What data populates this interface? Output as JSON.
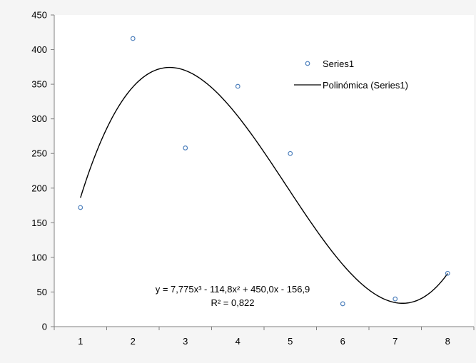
{
  "chart_data": {
    "type": "scatter",
    "x": [
      1,
      2,
      3,
      4,
      5,
      6,
      7,
      8
    ],
    "series": [
      {
        "name": "Series1",
        "marker": "circle-open",
        "color": "#4f81bd",
        "values": [
          172,
          416,
          258,
          347,
          250,
          33,
          40,
          77
        ]
      }
    ],
    "trendline": {
      "name": "Polinómica (Series1)",
      "type": "polynomial",
      "order": 3,
      "coefficients": [
        7.775,
        -114.8,
        450.0,
        -156.9
      ],
      "color": "#000000",
      "equation_label": "y = 7,775x³ - 114,8x² + 450,0x - 156,9",
      "r2_label": "R² = 0,822"
    },
    "xlim": [
      0.5,
      8.5
    ],
    "ylim": [
      0,
      450
    ],
    "x_ticks": [
      1,
      2,
      3,
      4,
      5,
      6,
      7,
      8
    ],
    "y_ticks": [
      0,
      50,
      100,
      150,
      200,
      250,
      300,
      350,
      400,
      450
    ],
    "title": "",
    "xlabel": "",
    "ylabel": "",
    "grid": false,
    "legend": {
      "position": "top-right"
    }
  },
  "colors": {
    "background": "#f5f5f5",
    "plot_background": "#ffffff",
    "axis": "#808080",
    "marker": "#4f81bd",
    "trendline": "#000000"
  }
}
